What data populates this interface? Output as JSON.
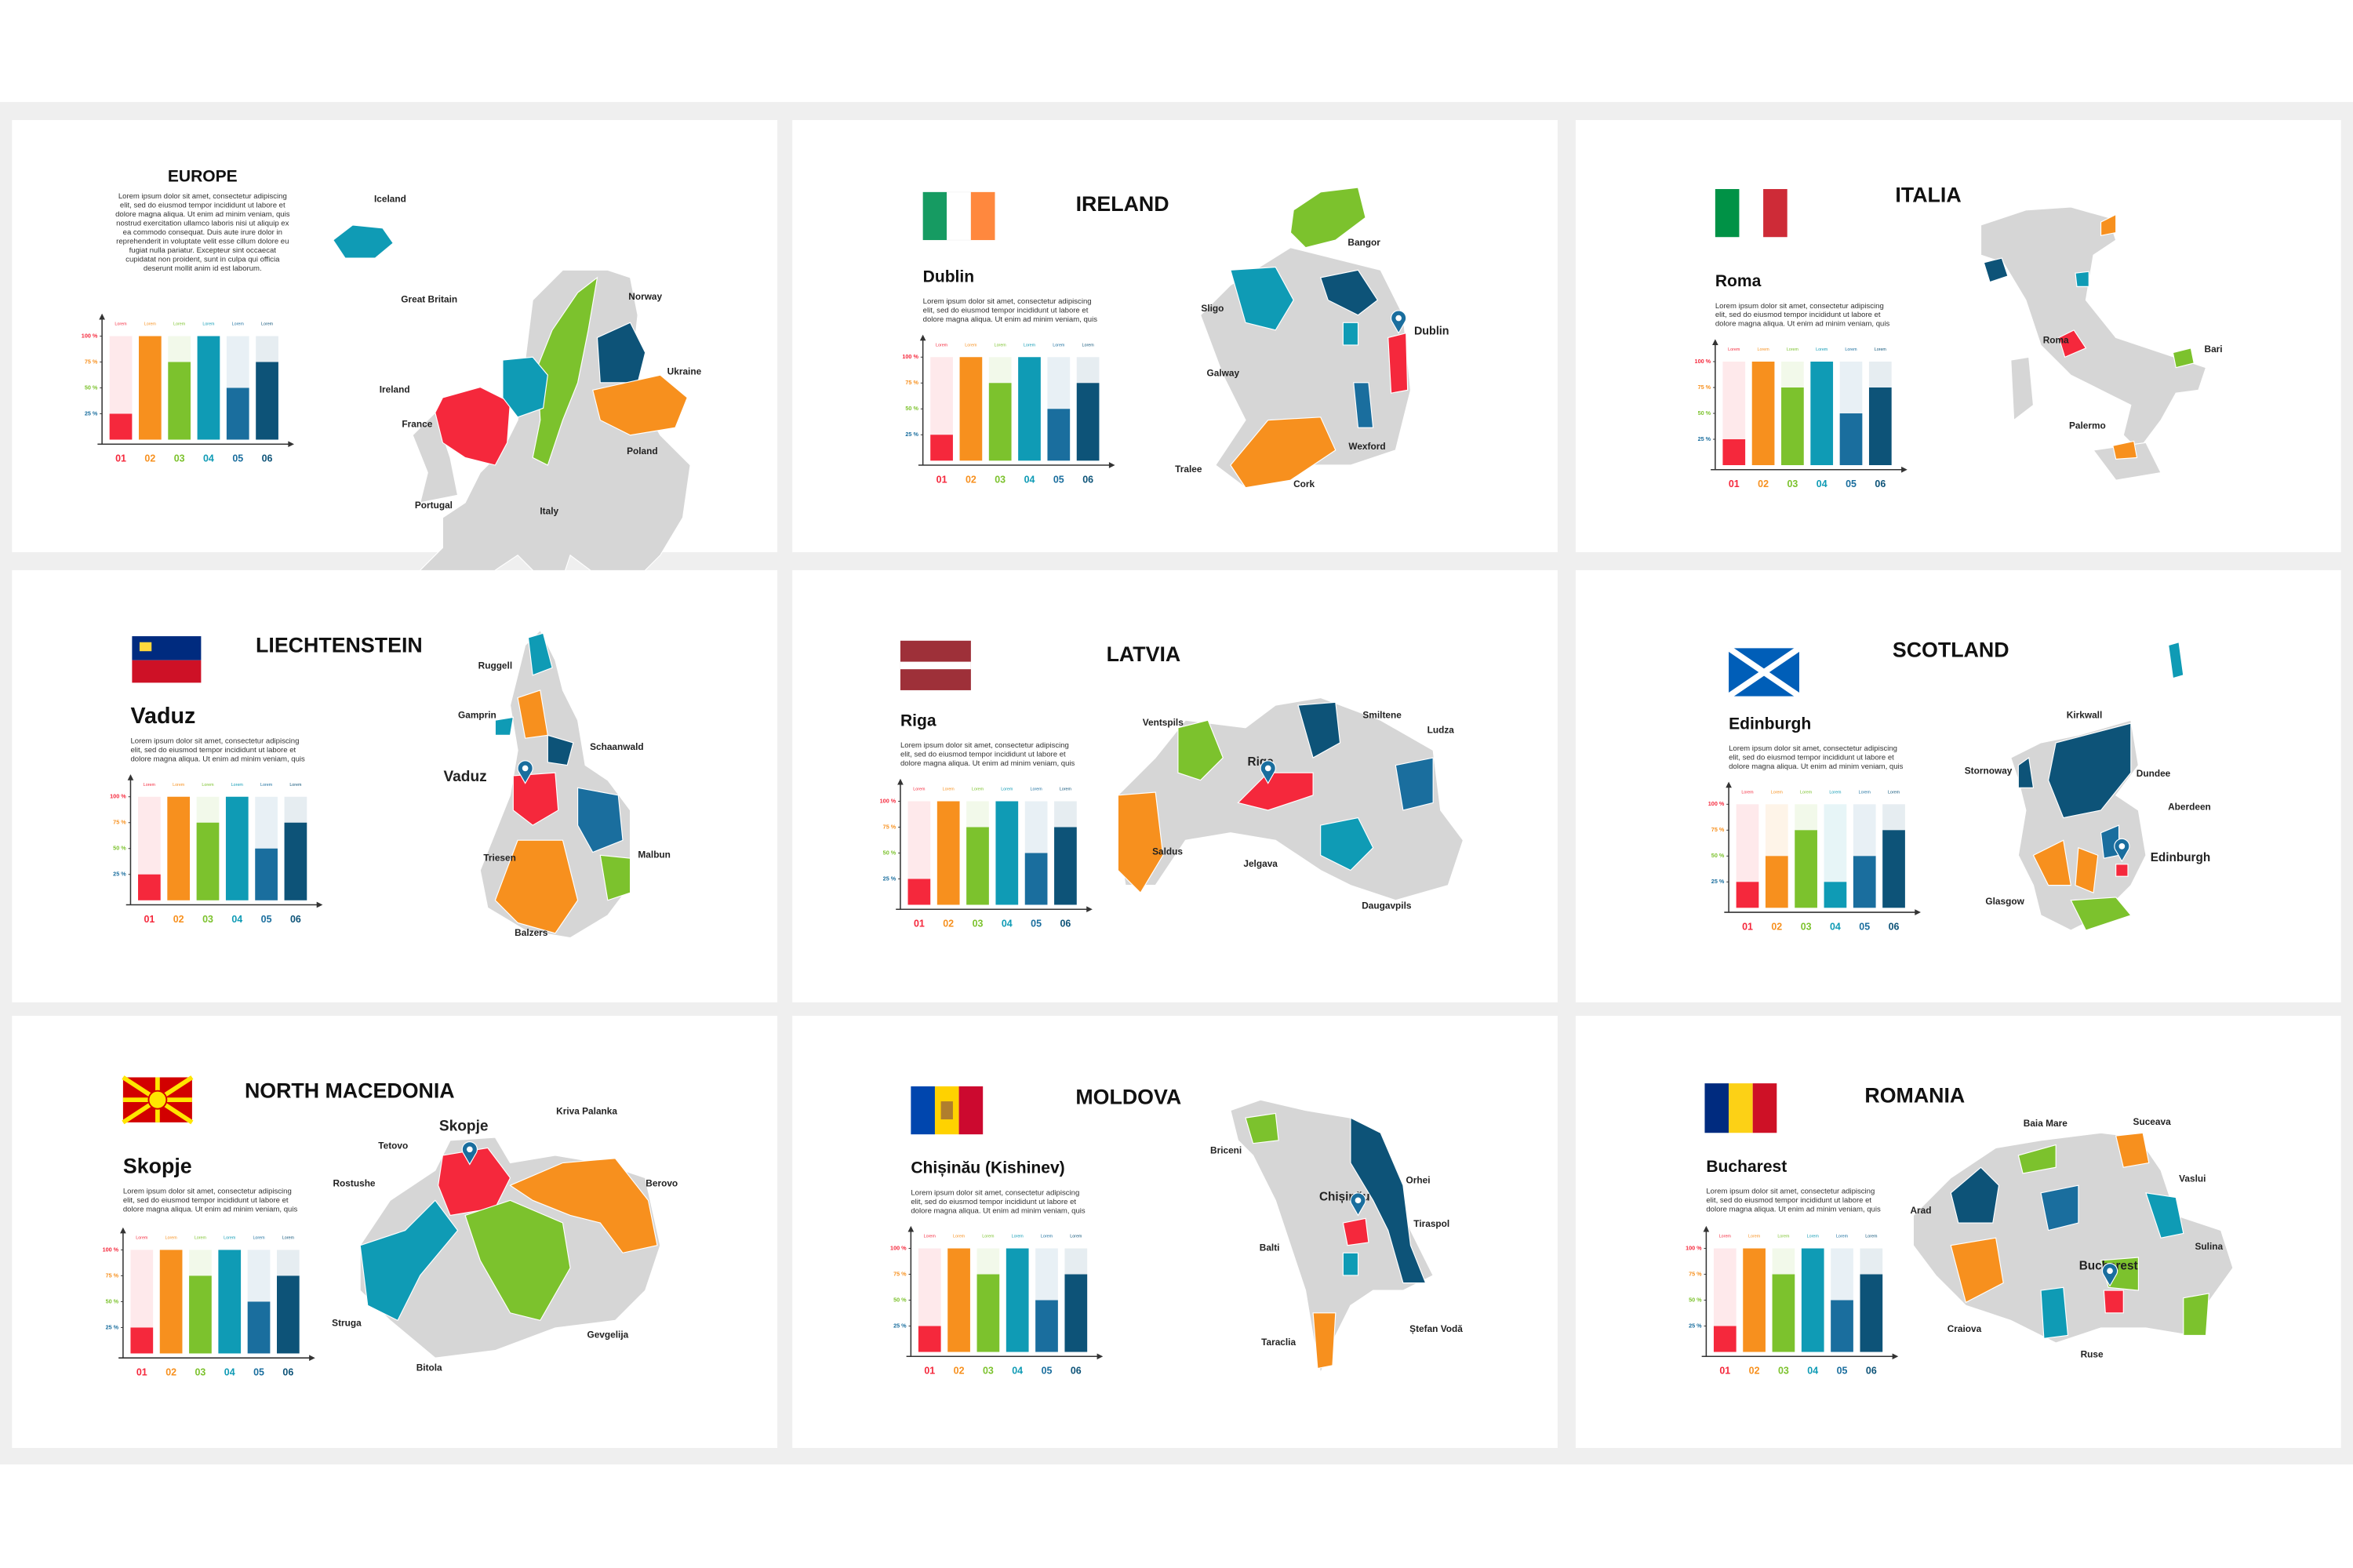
{
  "slides": [
    {
      "title": "EUROPE",
      "body": [
        "Lorem ipsum dolor sit amet, consectetur adipiscing",
        "elit, sed do eiusmod tempor incididunt ut labore et",
        "dolore magna aliqua. Ut enim ad minim veniam, quis",
        "nostrud exercitation ullamco laboris nisi ut aliquip ex",
        "ea commodo consequat. Duis aute irure dolor in",
        "reprehenderit in voluptate velit esse cillum dolore eu",
        "fugiat nulla pariatur. Excepteur sint occaecat",
        "cupidatat non proident, sunt in culpa qui officia",
        "deserunt mollit anim id est laborum."
      ],
      "map_labels": [
        "Iceland",
        "Great Britain",
        "Norway",
        "Ireland",
        "Ukraine",
        "France",
        "Poland",
        "Portugal",
        "Italy"
      ],
      "chart_data": {
        "type": "bar",
        "categories": [
          "01",
          "02",
          "03",
          "04",
          "05",
          "06"
        ],
        "values": [
          25,
          100,
          75,
          100,
          50,
          75
        ],
        "bar_labels": [
          "Lorem",
          "Lorem",
          "Lorem",
          "Lorem",
          "Lorem",
          "Lorem"
        ],
        "colors": [
          "#f5283c",
          "#f7901e",
          "#7cc22d",
          "#0f9bb5",
          "#1a6e9e",
          "#0d5378"
        ],
        "ylim": [
          0,
          100
        ],
        "yticks": [
          {
            "value": 100,
            "label": "100 %"
          },
          {
            "value": 75,
            "label": "75 %"
          },
          {
            "value": 50,
            "label": "50 %"
          },
          {
            "value": 25,
            "label": "25 %"
          }
        ]
      }
    },
    {
      "title": "IRELAND",
      "city": "Dublin",
      "body": [
        "Lorem ipsum dolor sit amet, consectetur adipiscing",
        "elit, sed do eiusmod tempor incididunt ut labore et",
        "dolore magna aliqua. Ut enim ad minim veniam, quis"
      ],
      "map_labels": [
        "Bangor",
        "Sligo",
        "Dublin",
        "Galway",
        "Wexford",
        "Tralee",
        "Cork"
      ],
      "chart_data": {
        "type": "bar",
        "categories": [
          "01",
          "02",
          "03",
          "04",
          "05",
          "06"
        ],
        "values": [
          25,
          100,
          75,
          100,
          50,
          75
        ],
        "bar_labels": [
          "Lorem",
          "Lorem",
          "Lorem",
          "Lorem",
          "Lorem",
          "Lorem"
        ],
        "colors": [
          "#f5283c",
          "#f7901e",
          "#7cc22d",
          "#0f9bb5",
          "#1a6e9e",
          "#0d5378"
        ],
        "ylim": [
          0,
          100
        ],
        "yticks": [
          {
            "value": 100,
            "label": "100 %"
          },
          {
            "value": 75,
            "label": "75 %"
          },
          {
            "value": 50,
            "label": "50 %"
          },
          {
            "value": 25,
            "label": "25 %"
          }
        ]
      }
    },
    {
      "title": "ITALIA",
      "city": "Roma",
      "body": [
        "Lorem ipsum dolor sit amet, consectetur adipiscing",
        "elit, sed do eiusmod tempor incididunt ut labore et",
        "dolore magna aliqua. Ut enim ad minim veniam, quis"
      ],
      "map_labels": [
        "Roma",
        "Bari",
        "Palermo"
      ],
      "chart_data": {
        "type": "bar",
        "categories": [
          "01",
          "02",
          "03",
          "04",
          "05",
          "06"
        ],
        "values": [
          25,
          100,
          75,
          100,
          50,
          75
        ],
        "bar_labels": [
          "Lorem",
          "Lorem",
          "Lorem",
          "Lorem",
          "Lorem",
          "Lorem"
        ],
        "colors": [
          "#f5283c",
          "#f7901e",
          "#7cc22d",
          "#0f9bb5",
          "#1a6e9e",
          "#0d5378"
        ],
        "ylim": [
          0,
          100
        ],
        "yticks": [
          {
            "value": 100,
            "label": "100 %"
          },
          {
            "value": 75,
            "label": "75 %"
          },
          {
            "value": 50,
            "label": "50 %"
          },
          {
            "value": 25,
            "label": "25 %"
          }
        ]
      }
    },
    {
      "title": "LIECHTENSTEIN",
      "city": "Vaduz",
      "body": [
        "Lorem ipsum dolor sit amet, consectetur adipiscing",
        "elit, sed do eiusmod tempor incididunt ut labore et",
        "dolore magna aliqua. Ut enim ad minim veniam, quis"
      ],
      "map_labels": [
        "Ruggell",
        "Gamprin",
        "Schaanwald",
        "Vaduz",
        "Triesen",
        "Malbun",
        "Balzers"
      ],
      "chart_data": {
        "type": "bar",
        "categories": [
          "01",
          "02",
          "03",
          "04",
          "05",
          "06"
        ],
        "values": [
          25,
          100,
          75,
          100,
          50,
          75
        ],
        "bar_labels": [
          "Lorem",
          "Lorem",
          "Lorem",
          "Lorem",
          "Lorem",
          "Lorem"
        ],
        "colors": [
          "#f5283c",
          "#f7901e",
          "#7cc22d",
          "#0f9bb5",
          "#1a6e9e",
          "#0d5378"
        ],
        "ylim": [
          0,
          100
        ],
        "yticks": [
          {
            "value": 100,
            "label": "100 %"
          },
          {
            "value": 75,
            "label": "75 %"
          },
          {
            "value": 50,
            "label": "50 %"
          },
          {
            "value": 25,
            "label": "25 %"
          }
        ]
      }
    },
    {
      "title": "LATVIA",
      "city": "Riga",
      "body": [
        "Lorem ipsum dolor sit amet, consectetur adipiscing",
        "elit, sed do eiusmod tempor incididunt ut labore et",
        "dolore magna aliqua. Ut enim ad minim veniam, quis"
      ],
      "map_labels": [
        "Ventspils",
        "Smiltene",
        "Ludza",
        "Riga",
        "Saldus",
        "Jelgava",
        "Daugavpils"
      ],
      "chart_data": {
        "type": "bar",
        "categories": [
          "01",
          "02",
          "03",
          "04",
          "05",
          "06"
        ],
        "values": [
          25,
          100,
          75,
          100,
          50,
          75
        ],
        "bar_labels": [
          "Lorem",
          "Lorem",
          "Lorem",
          "Lorem",
          "Lorem",
          "Lorem"
        ],
        "colors": [
          "#f5283c",
          "#f7901e",
          "#7cc22d",
          "#0f9bb5",
          "#1a6e9e",
          "#0d5378"
        ],
        "ylim": [
          0,
          100
        ],
        "yticks": [
          {
            "value": 100,
            "label": "100 %"
          },
          {
            "value": 75,
            "label": "75 %"
          },
          {
            "value": 50,
            "label": "50 %"
          },
          {
            "value": 25,
            "label": "25 %"
          }
        ]
      }
    },
    {
      "title": "SCOTLAND",
      "city": "Edinburgh",
      "body": [
        "Lorem ipsum dolor sit amet, consectetur adipiscing",
        "elit, sed do eiusmod tempor incididunt ut labore et",
        "dolore magna aliqua. Ut enim ad minim veniam, quis"
      ],
      "map_labels": [
        "Kirkwall",
        "Stornoway",
        "Dundee",
        "Aberdeen",
        "Edinburgh",
        "Glasgow"
      ],
      "chart_data": {
        "type": "bar",
        "categories": [
          "01",
          "02",
          "03",
          "04",
          "05",
          "06"
        ],
        "values": [
          25,
          50,
          75,
          25,
          50,
          75
        ],
        "bar_labels": [
          "Lorem",
          "Lorem",
          "Lorem",
          "Lorem",
          "Lorem",
          "Lorem"
        ],
        "colors": [
          "#f5283c",
          "#f7901e",
          "#7cc22d",
          "#0f9bb5",
          "#1a6e9e",
          "#0d5378"
        ],
        "ylim": [
          0,
          100
        ],
        "yticks": [
          {
            "value": 100,
            "label": "100 %"
          },
          {
            "value": 75,
            "label": "75 %"
          },
          {
            "value": 50,
            "label": "50 %"
          },
          {
            "value": 25,
            "label": "25 %"
          }
        ]
      }
    },
    {
      "title": "NORTH MACEDONIA",
      "city": "Skopje",
      "body": [
        "Lorem ipsum dolor sit amet, consectetur adipiscing",
        "elit, sed do eiusmod tempor incididunt ut labore et",
        "dolore magna aliqua. Ut enim ad minim veniam, quis"
      ],
      "map_labels": [
        "Kriva Palanka",
        "Tetovo",
        "Skopje",
        "Rostushe",
        "Berovo",
        "Struga",
        "Gevgelija",
        "Bitola"
      ],
      "chart_data": {
        "type": "bar",
        "categories": [
          "01",
          "02",
          "03",
          "04",
          "05",
          "06"
        ],
        "values": [
          25,
          100,
          75,
          100,
          50,
          75
        ],
        "bar_labels": [
          "Lorem",
          "Lorem",
          "Lorem",
          "Lorem",
          "Lorem",
          "Lorem"
        ],
        "colors": [
          "#f5283c",
          "#f7901e",
          "#7cc22d",
          "#0f9bb5",
          "#1a6e9e",
          "#0d5378"
        ],
        "ylim": [
          0,
          100
        ],
        "yticks": [
          {
            "value": 100,
            "label": "100 %"
          },
          {
            "value": 75,
            "label": "75 %"
          },
          {
            "value": 50,
            "label": "50 %"
          },
          {
            "value": 25,
            "label": "25 %"
          }
        ]
      }
    },
    {
      "title": "MOLDOVA",
      "city": "Chișinău  (Kishinev)",
      "body": [
        "Lorem ipsum dolor sit amet, consectetur adipiscing",
        "elit, sed do eiusmod tempor incididunt ut labore et",
        "dolore magna aliqua. Ut enim ad minim veniam, quis"
      ],
      "map_labels": [
        "Briceni",
        "Orhei",
        "Chișinău",
        "Tiraspol",
        "Balti",
        "Ștefan Vodă",
        "Taraclia"
      ],
      "chart_data": {
        "type": "bar",
        "categories": [
          "01",
          "02",
          "03",
          "04",
          "05",
          "06"
        ],
        "values": [
          25,
          100,
          75,
          100,
          50,
          75
        ],
        "bar_labels": [
          "Lorem",
          "Lorem",
          "Lorem",
          "Lorem",
          "Lorem",
          "Lorem"
        ],
        "colors": [
          "#f5283c",
          "#f7901e",
          "#7cc22d",
          "#0f9bb5",
          "#1a6e9e",
          "#0d5378"
        ],
        "ylim": [
          0,
          100
        ],
        "yticks": [
          {
            "value": 100,
            "label": "100 %"
          },
          {
            "value": 75,
            "label": "75 %"
          },
          {
            "value": 50,
            "label": "50 %"
          },
          {
            "value": 25,
            "label": "25 %"
          }
        ]
      }
    },
    {
      "title": "ROMANIA",
      "city": "Bucharest",
      "body": [
        "Lorem ipsum dolor sit amet, consectetur adipiscing",
        "elit, sed do eiusmod tempor incididunt ut labore et",
        "dolore magna aliqua. Ut enim ad minim veniam, quis"
      ],
      "map_labels": [
        "Baia Mare",
        "Suceava",
        "Vaslui",
        "Arad",
        "Sulina",
        "Bucharest",
        "Craiova",
        "Ruse"
      ],
      "chart_data": {
        "type": "bar",
        "categories": [
          "01",
          "02",
          "03",
          "04",
          "05",
          "06"
        ],
        "values": [
          25,
          100,
          75,
          100,
          50,
          75
        ],
        "bar_labels": [
          "Lorem",
          "Lorem",
          "Lorem",
          "Lorem",
          "Lorem",
          "Lorem"
        ],
        "colors": [
          "#f5283c",
          "#f7901e",
          "#7cc22d",
          "#0f9bb5",
          "#1a6e9e",
          "#0d5378"
        ],
        "ylim": [
          0,
          100
        ],
        "yticks": [
          {
            "value": 100,
            "label": "100 %"
          },
          {
            "value": 75,
            "label": "75 %"
          },
          {
            "value": 50,
            "label": "50 %"
          },
          {
            "value": 25,
            "label": "25 %"
          }
        ]
      }
    }
  ]
}
